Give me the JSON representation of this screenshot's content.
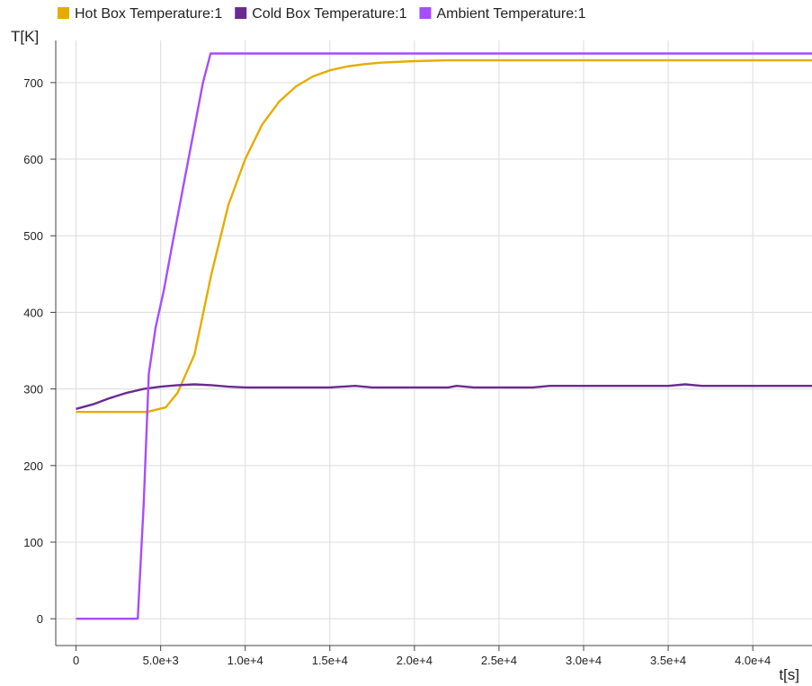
{
  "chart_data": {
    "type": "line",
    "title": "",
    "xlabel": "t[s]",
    "ylabel": "T[K]",
    "xlim": [
      -1200,
      43500
    ],
    "ylim": [
      -35,
      755
    ],
    "grid": true,
    "legend_position": "top",
    "x_ticks": [
      {
        "value": 0,
        "label": "0"
      },
      {
        "value": 5000,
        "label": "5.0e+3"
      },
      {
        "value": 10000,
        "label": "1.0e+4"
      },
      {
        "value": 15000,
        "label": "1.5e+4"
      },
      {
        "value": 20000,
        "label": "2.0e+4"
      },
      {
        "value": 25000,
        "label": "2.5e+4"
      },
      {
        "value": 30000,
        "label": "3.0e+4"
      },
      {
        "value": 35000,
        "label": "3.5e+4"
      },
      {
        "value": 40000,
        "label": "4.0e+4"
      }
    ],
    "y_ticks": [
      {
        "value": 0,
        "label": "0"
      },
      {
        "value": 100,
        "label": "100"
      },
      {
        "value": 200,
        "label": "200"
      },
      {
        "value": 300,
        "label": "300"
      },
      {
        "value": 400,
        "label": "400"
      },
      {
        "value": 500,
        "label": "500"
      },
      {
        "value": 600,
        "label": "600"
      },
      {
        "value": 700,
        "label": "700"
      }
    ],
    "series": [
      {
        "name": "Hot Box Temperature:1",
        "color": "#e6ac00",
        "points": [
          [
            0,
            270
          ],
          [
            4200,
            270
          ],
          [
            5300,
            276
          ],
          [
            6000,
            295
          ],
          [
            7000,
            345
          ],
          [
            8000,
            450
          ],
          [
            9000,
            540
          ],
          [
            10000,
            600
          ],
          [
            11000,
            645
          ],
          [
            12000,
            675
          ],
          [
            13000,
            695
          ],
          [
            14000,
            708
          ],
          [
            15000,
            716
          ],
          [
            16000,
            721
          ],
          [
            17000,
            724
          ],
          [
            18000,
            726
          ],
          [
            20000,
            728
          ],
          [
            22000,
            729
          ],
          [
            30000,
            729
          ],
          [
            43500,
            729
          ]
        ]
      },
      {
        "name": "Cold Box Temperature:1",
        "color": "#6a2b8f",
        "points": [
          [
            0,
            274
          ],
          [
            1000,
            280
          ],
          [
            2000,
            288
          ],
          [
            3000,
            295
          ],
          [
            4000,
            300
          ],
          [
            5000,
            303
          ],
          [
            6000,
            305
          ],
          [
            7000,
            306
          ],
          [
            8000,
            305
          ],
          [
            9000,
            303
          ],
          [
            10000,
            302
          ],
          [
            15000,
            302
          ],
          [
            16500,
            304
          ],
          [
            17500,
            302
          ],
          [
            22000,
            302
          ],
          [
            22500,
            304
          ],
          [
            23500,
            302
          ],
          [
            27000,
            302
          ],
          [
            28000,
            304
          ],
          [
            35000,
            304
          ],
          [
            36000,
            306
          ],
          [
            37000,
            304
          ],
          [
            43500,
            304
          ]
        ]
      },
      {
        "name": "Ambient Temperature:1",
        "color": "#a64dff",
        "points": [
          [
            0,
            0
          ],
          [
            3650,
            0
          ],
          [
            4000,
            150
          ],
          [
            4300,
            320
          ],
          [
            4700,
            380
          ],
          [
            5200,
            430
          ],
          [
            5700,
            490
          ],
          [
            6300,
            560
          ],
          [
            6900,
            630
          ],
          [
            7500,
            700
          ],
          [
            7950,
            738
          ],
          [
            43500,
            738
          ]
        ]
      }
    ]
  }
}
